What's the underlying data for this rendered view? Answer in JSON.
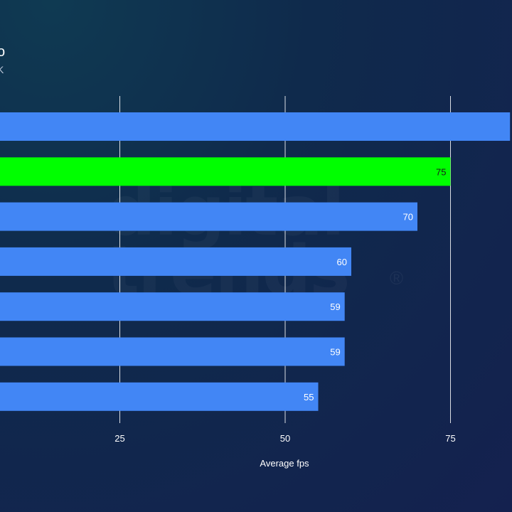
{
  "partial_text": {
    "title": "o",
    "subtitle": "K"
  },
  "watermark": {
    "text": "digital trends",
    "mark": "®"
  },
  "colors": {
    "bar_default": "#4286f5",
    "bar_highlight": "#00ff00",
    "gridline": "#ffffff",
    "label_on_blue": "#ffffff",
    "label_on_green": "#1a1a1a"
  },
  "chart_data": {
    "type": "bar",
    "orientation": "horizontal",
    "xlabel": "Average fps",
    "x_ticks": [
      25,
      50,
      75
    ],
    "grid": true,
    "bars": [
      {
        "value": 84,
        "label": "",
        "highlight": false
      },
      {
        "value": 75,
        "label": "75",
        "highlight": true
      },
      {
        "value": 70,
        "label": "70",
        "highlight": false
      },
      {
        "value": 60,
        "label": "60",
        "highlight": false
      },
      {
        "value": 59,
        "label": "59",
        "highlight": false
      },
      {
        "value": 59,
        "label": "59",
        "highlight": false
      },
      {
        "value": 55,
        "label": "55",
        "highlight": false
      }
    ]
  }
}
